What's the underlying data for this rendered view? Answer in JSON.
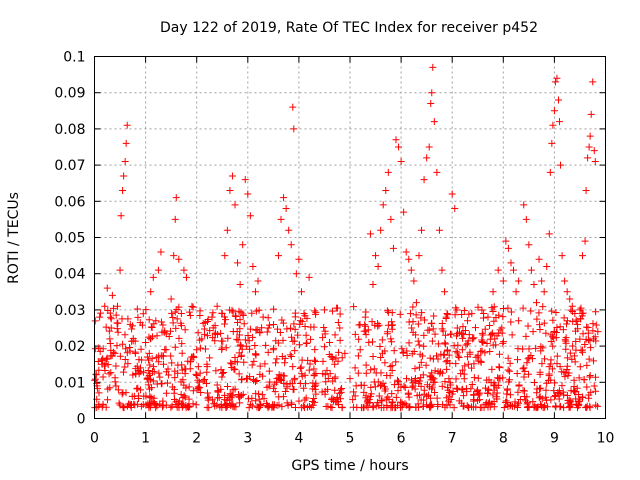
{
  "chart_data": {
    "type": "scatter",
    "title": "Day 122 of 2019, Rate Of TEC Index for receiver p452",
    "xlabel": "GPS time / hours",
    "ylabel": "ROTI / TECUs",
    "xlim": [
      0,
      10
    ],
    "ylim": [
      0,
      0.1
    ],
    "xticks": [
      "0",
      "1",
      "2",
      "3",
      "4",
      "5",
      "6",
      "7",
      "8",
      "9",
      "10"
    ],
    "yticks": [
      "0",
      "0.01",
      "0.02",
      "0.03",
      "0.04",
      "0.05",
      "0.06",
      "0.07",
      "0.08",
      "0.09",
      "0.1"
    ],
    "grid": true,
    "marker": "+",
    "color": "#ff0000",
    "series": [
      {
        "name": "ROTI",
        "points": [
          [
            0.05,
            0.009
          ],
          [
            0.1,
            0.028
          ],
          [
            0.15,
            0.015
          ],
          [
            0.2,
            0.031
          ],
          [
            0.25,
            0.036
          ],
          [
            0.3,
            0.022
          ],
          [
            0.35,
            0.034
          ],
          [
            0.4,
            0.018
          ],
          [
            0.45,
            0.031
          ],
          [
            0.5,
            0.041
          ],
          [
            0.52,
            0.056
          ],
          [
            0.55,
            0.063
          ],
          [
            0.57,
            0.067
          ],
          [
            0.6,
            0.071
          ],
          [
            0.62,
            0.076
          ],
          [
            0.64,
            0.081
          ],
          [
            0.7,
            0.026
          ],
          [
            0.75,
            0.012
          ],
          [
            0.8,
            0.018
          ],
          [
            0.9,
            0.014
          ],
          [
            1.0,
            0.021
          ],
          [
            1.05,
            0.011
          ],
          [
            1.1,
            0.035
          ],
          [
            1.15,
            0.039
          ],
          [
            1.2,
            0.027
          ],
          [
            1.25,
            0.041
          ],
          [
            1.3,
            0.046
          ],
          [
            1.35,
            0.015
          ],
          [
            1.4,
            0.019
          ],
          [
            1.45,
            0.012
          ],
          [
            1.5,
            0.033
          ],
          [
            1.55,
            0.045
          ],
          [
            1.58,
            0.055
          ],
          [
            1.6,
            0.061
          ],
          [
            1.65,
            0.044
          ],
          [
            1.7,
            0.029
          ],
          [
            1.75,
            0.041
          ],
          [
            1.8,
            0.039
          ],
          [
            1.9,
            0.017
          ],
          [
            2.0,
            0.019
          ],
          [
            2.1,
            0.022
          ],
          [
            2.2,
            0.015
          ],
          [
            2.3,
            0.028
          ],
          [
            2.4,
            0.031
          ],
          [
            2.5,
            0.029
          ],
          [
            2.55,
            0.045
          ],
          [
            2.6,
            0.052
          ],
          [
            2.65,
            0.063
          ],
          [
            2.7,
            0.067
          ],
          [
            2.75,
            0.059
          ],
          [
            2.8,
            0.043
          ],
          [
            2.85,
            0.037
          ],
          [
            2.9,
            0.048
          ],
          [
            2.95,
            0.066
          ],
          [
            3.0,
            0.062
          ],
          [
            3.05,
            0.056
          ],
          [
            3.1,
            0.042
          ],
          [
            3.15,
            0.035
          ],
          [
            3.2,
            0.038
          ],
          [
            3.3,
            0.028
          ],
          [
            3.4,
            0.025
          ],
          [
            3.5,
            0.019
          ],
          [
            3.6,
            0.045
          ],
          [
            3.65,
            0.055
          ],
          [
            3.7,
            0.061
          ],
          [
            3.75,
            0.058
          ],
          [
            3.8,
            0.052
          ],
          [
            3.85,
            0.048
          ],
          [
            3.88,
            0.086
          ],
          [
            3.9,
            0.08
          ],
          [
            3.95,
            0.04
          ],
          [
            4.0,
            0.044
          ],
          [
            4.05,
            0.035
          ],
          [
            4.1,
            0.029
          ],
          [
            4.2,
            0.039
          ],
          [
            4.3,
            0.012
          ],
          [
            4.5,
            0.03
          ],
          [
            4.6,
            0.021
          ],
          [
            4.7,
            0.015
          ],
          [
            4.8,
            0.025
          ],
          [
            4.9,
            0.018
          ],
          [
            5.0,
            0.011
          ],
          [
            5.1,
            0.014
          ],
          [
            5.2,
            0.019
          ],
          [
            5.3,
            0.028
          ],
          [
            5.4,
            0.051
          ],
          [
            5.45,
            0.037
          ],
          [
            5.5,
            0.045
          ],
          [
            5.55,
            0.042
          ],
          [
            5.6,
            0.052
          ],
          [
            5.65,
            0.059
          ],
          [
            5.7,
            0.063
          ],
          [
            5.75,
            0.068
          ],
          [
            5.8,
            0.055
          ],
          [
            5.85,
            0.047
          ],
          [
            5.9,
            0.077
          ],
          [
            5.95,
            0.075
          ],
          [
            6.0,
            0.071
          ],
          [
            6.05,
            0.057
          ],
          [
            6.1,
            0.046
          ],
          [
            6.15,
            0.044
          ],
          [
            6.2,
            0.041
          ],
          [
            6.25,
            0.038
          ],
          [
            6.3,
            0.032
          ],
          [
            6.35,
            0.045
          ],
          [
            6.4,
            0.052
          ],
          [
            6.45,
            0.066
          ],
          [
            6.5,
            0.072
          ],
          [
            6.55,
            0.075
          ],
          [
            6.58,
            0.087
          ],
          [
            6.6,
            0.09
          ],
          [
            6.62,
            0.097
          ],
          [
            6.65,
            0.082
          ],
          [
            6.7,
            0.068
          ],
          [
            6.75,
            0.052
          ],
          [
            6.8,
            0.041
          ],
          [
            6.85,
            0.035
          ],
          [
            6.9,
            0.029
          ],
          [
            7.0,
            0.062
          ],
          [
            7.05,
            0.058
          ],
          [
            7.1,
            0.025
          ],
          [
            7.2,
            0.019
          ],
          [
            7.3,
            0.027
          ],
          [
            7.4,
            0.022
          ],
          [
            7.5,
            0.017
          ],
          [
            7.6,
            0.021
          ],
          [
            7.7,
            0.028
          ],
          [
            7.8,
            0.035
          ],
          [
            7.9,
            0.041
          ],
          [
            8.0,
            0.038
          ],
          [
            8.05,
            0.049
          ],
          [
            8.1,
            0.047
          ],
          [
            8.15,
            0.043
          ],
          [
            8.2,
            0.041
          ],
          [
            8.25,
            0.035
          ],
          [
            8.3,
            0.038
          ],
          [
            8.4,
            0.059
          ],
          [
            8.45,
            0.055
          ],
          [
            8.5,
            0.048
          ],
          [
            8.55,
            0.041
          ],
          [
            8.6,
            0.037
          ],
          [
            8.65,
            0.032
          ],
          [
            8.7,
            0.044
          ],
          [
            8.75,
            0.038
          ],
          [
            8.8,
            0.035
          ],
          [
            8.85,
            0.042
          ],
          [
            8.9,
            0.051
          ],
          [
            8.92,
            0.068
          ],
          [
            8.95,
            0.076
          ],
          [
            8.97,
            0.081
          ],
          [
            9.0,
            0.085
          ],
          [
            9.02,
            0.093
          ],
          [
            9.05,
            0.094
          ],
          [
            9.08,
            0.088
          ],
          [
            9.1,
            0.082
          ],
          [
            9.12,
            0.07
          ],
          [
            9.15,
            0.045
          ],
          [
            9.2,
            0.038
          ],
          [
            9.25,
            0.035
          ],
          [
            9.3,
            0.033
          ],
          [
            9.35,
            0.031
          ],
          [
            9.4,
            0.029
          ],
          [
            9.45,
            0.026
          ],
          [
            9.5,
            0.03
          ],
          [
            9.55,
            0.045
          ],
          [
            9.6,
            0.049
          ],
          [
            9.62,
            0.063
          ],
          [
            9.65,
            0.072
          ],
          [
            9.68,
            0.075
          ],
          [
            9.7,
            0.078
          ],
          [
            9.72,
            0.084
          ],
          [
            9.75,
            0.093
          ],
          [
            9.78,
            0.074
          ],
          [
            9.8,
            0.071
          ],
          [
            9.85,
            0.024
          ]
        ]
      }
    ]
  }
}
